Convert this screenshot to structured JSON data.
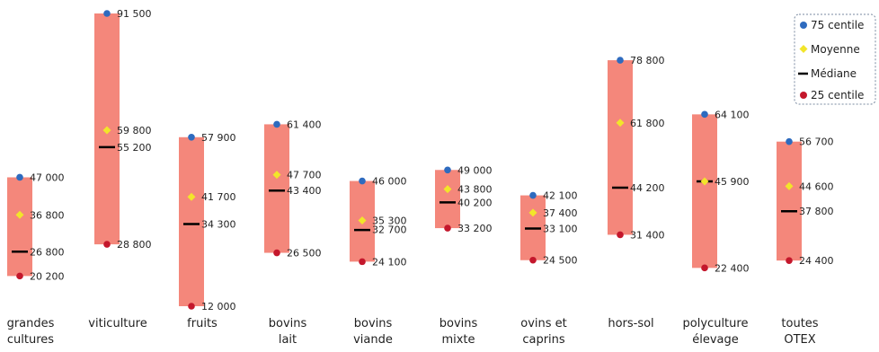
{
  "chart_data": {
    "type": "range",
    "categories": [
      [
        "grandes",
        "cultures"
      ],
      [
        "viticulture"
      ],
      [
        "fruits"
      ],
      [
        "bovins",
        "lait"
      ],
      [
        "bovins",
        "viande"
      ],
      [
        "bovins",
        "mixte"
      ],
      [
        "ovins et",
        "caprins"
      ],
      [
        "hors-sol"
      ],
      [
        "polyculture",
        "élevage"
      ],
      [
        "toutes",
        "OTEX"
      ]
    ],
    "series": [
      {
        "name": "75 centile",
        "marker": "circle",
        "color": "#2e6bbf",
        "values": [
          47000,
          91500,
          57900,
          61400,
          46000,
          49000,
          42100,
          78800,
          64100,
          56700
        ],
        "labels": [
          "47 000",
          "91 500",
          "57 900",
          "61 400",
          "46 000",
          "49 000",
          "42 100",
          "78 800",
          "64 100",
          "56 700"
        ]
      },
      {
        "name": "Moyenne",
        "marker": "diamond",
        "color": "#f2e52a",
        "values": [
          36800,
          59800,
          41700,
          47700,
          35300,
          43800,
          37400,
          61800,
          45900,
          44600
        ],
        "labels": [
          "36 800",
          "59 800",
          "41 700",
          "47 700",
          "35 300",
          "43 800",
          "37 400",
          "61 800",
          "45 900",
          "44 600"
        ]
      },
      {
        "name": "Médiane",
        "marker": "dash",
        "color": "#000000",
        "values": [
          26800,
          55200,
          34300,
          43400,
          32700,
          40200,
          33100,
          44200,
          45900,
          37800
        ],
        "labels": [
          "26 800",
          "55 200",
          "34 300",
          "43 400",
          "32 700",
          "40 200",
          "33 100",
          "44 200",
          "",
          "37 800"
        ]
      },
      {
        "name": "25 centile",
        "marker": "circle",
        "color": "#c4172c",
        "values": [
          20200,
          28800,
          12000,
          26500,
          24100,
          33200,
          24500,
          31400,
          22400,
          24400
        ],
        "labels": [
          "20 200",
          "28 800",
          "12 000",
          "26 500",
          "24 100",
          "33 200",
          "24 500",
          "31 400",
          "22 400",
          "24 400"
        ]
      }
    ],
    "bar_color": "#f4877b",
    "legend_position": "top-right",
    "ylim": [
      10000,
      93000
    ],
    "grid": false
  }
}
